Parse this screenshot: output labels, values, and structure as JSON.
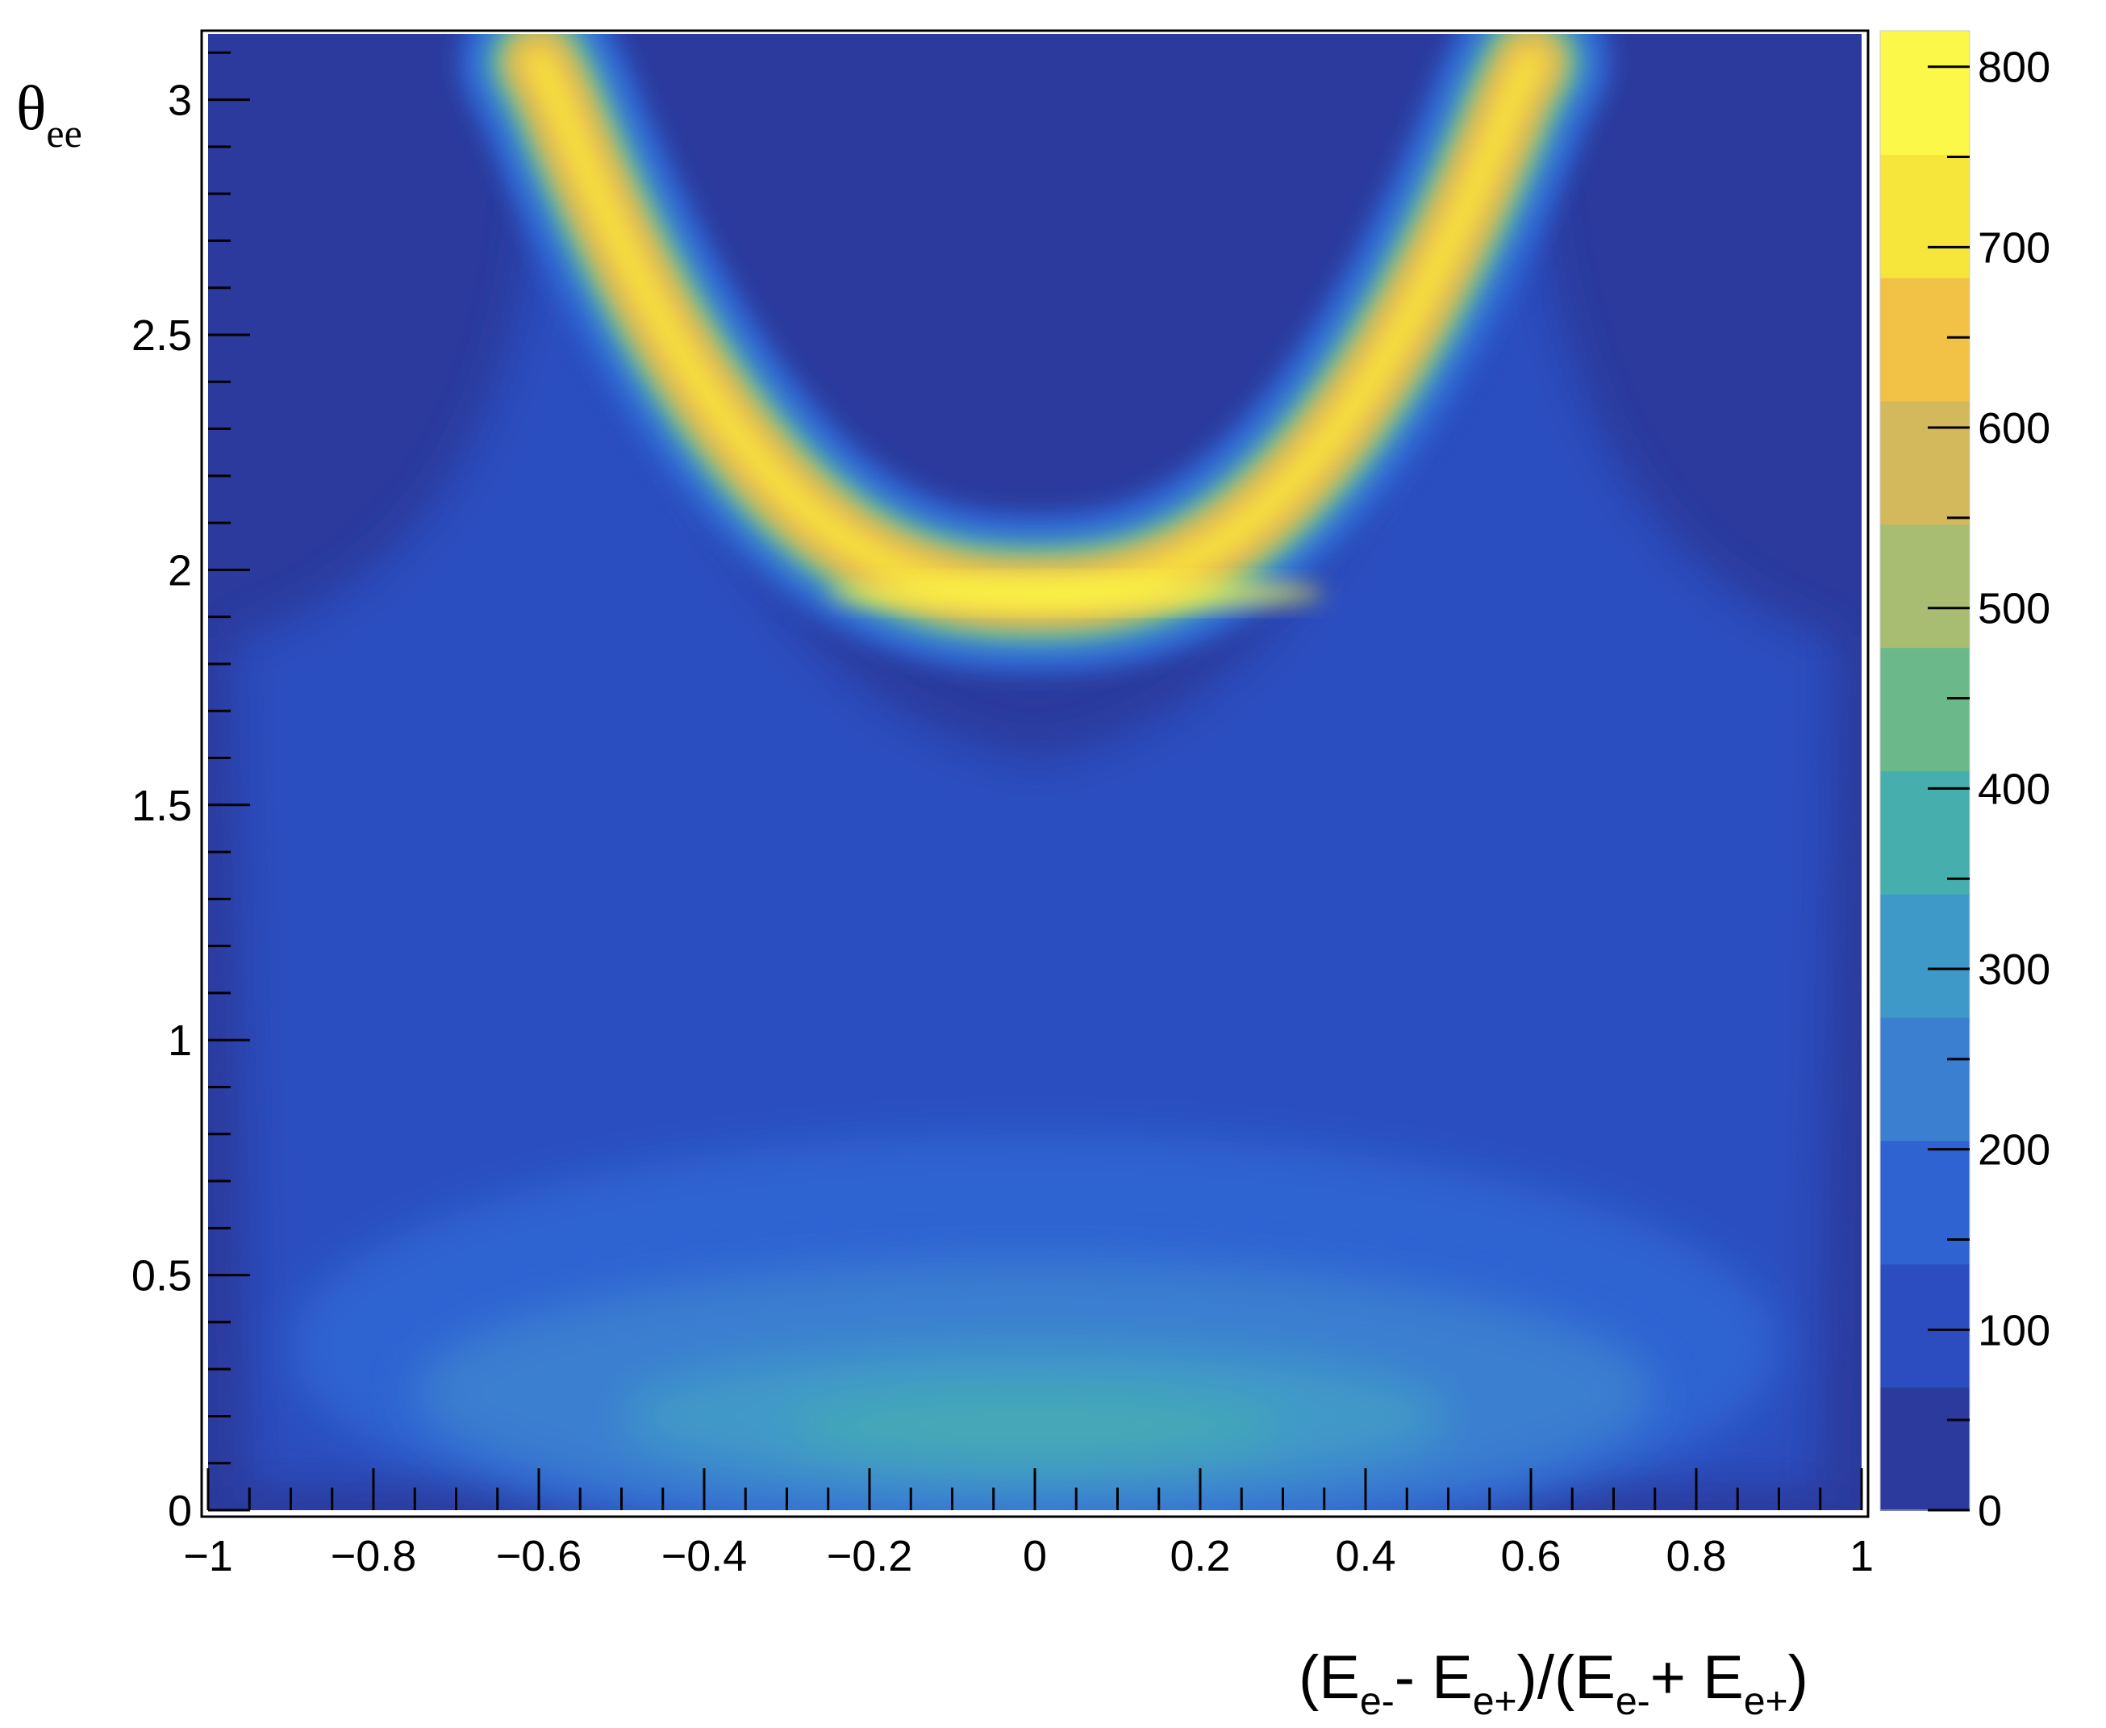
{
  "chart_data": {
    "type": "heatmap",
    "title": "",
    "xlabel": "(E_e- - E_e+)/(E_e- + E_e+)",
    "ylabel": "θ_ee",
    "xlim": [
      -1,
      1
    ],
    "ylim": [
      0,
      3.14
    ],
    "zlim": [
      0,
      820
    ],
    "x_ticks": [
      "−1",
      "−0.8",
      "−0.6",
      "−0.4",
      "−0.2",
      "0",
      "0.2",
      "0.4",
      "0.6",
      "0.8",
      "1"
    ],
    "y_ticks": [
      "0",
      "0.5",
      "1",
      "1.5",
      "2",
      "2.5",
      "3"
    ],
    "colorbar_ticks": [
      "0",
      "100",
      "200",
      "300",
      "400",
      "500",
      "600",
      "700",
      "800"
    ],
    "colorscale": [
      "#2b3a9c",
      "#2b4dbf",
      "#2f63d2",
      "#3a7fd0",
      "#3f99c8",
      "#47aeae",
      "#6bb98a",
      "#a8bc72",
      "#d3b95c",
      "#f2c247",
      "#f6e63c",
      "#fbf84a"
    ],
    "band": {
      "description_values": {
        "center_at_x0": 1.95,
        "top_at_x_pm0_6": 3.1
      },
      "peak_value": 820
    },
    "low_region": {
      "y_center": 0.2,
      "peak_value": 300
    }
  },
  "labels": {
    "ylabel_main": "θ",
    "ylabel_sub": "ee",
    "xlabel_parts": [
      "(E",
      "e-",
      "- E",
      "e+",
      ")/(E",
      "e-",
      "+ E",
      "e+",
      ")"
    ]
  }
}
